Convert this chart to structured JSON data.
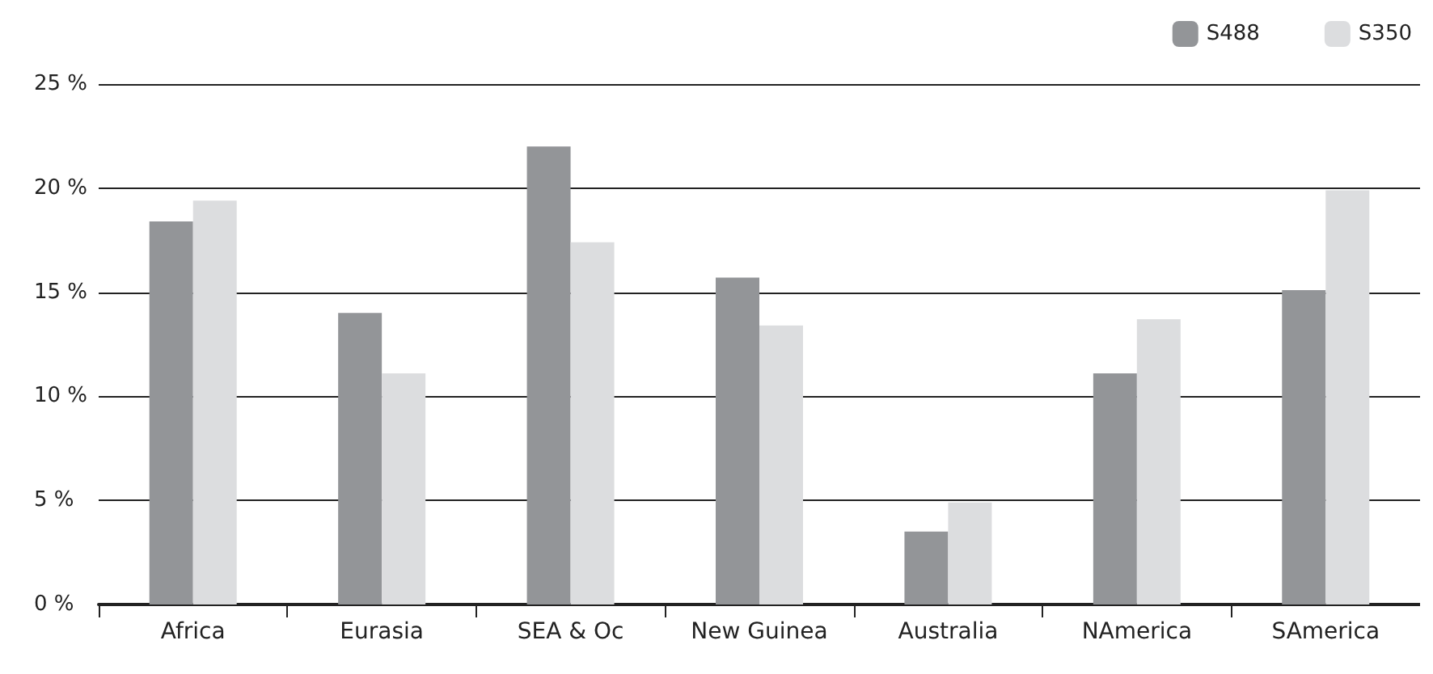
{
  "chart_data": {
    "type": "bar",
    "categories": [
      "Africa",
      "Eurasia",
      "SEA & Oc",
      "New Guinea",
      "Australia",
      "NAmerica",
      "SAmerica"
    ],
    "series": [
      {
        "name": "S488",
        "color": "#939598",
        "values": [
          18.4,
          14.0,
          22.0,
          15.7,
          3.5,
          11.1,
          15.1
        ]
      },
      {
        "name": "S350",
        "color": "#dcdddf",
        "values": [
          19.4,
          11.1,
          17.4,
          13.4,
          4.9,
          13.7,
          19.9
        ]
      }
    ],
    "ylim": [
      0,
      25
    ],
    "yticks": [
      {
        "value": 0,
        "label": "0 %"
      },
      {
        "value": 5,
        "label": "5 %"
      },
      {
        "value": 10,
        "label": "10 %"
      },
      {
        "value": 15,
        "label": "15 %"
      },
      {
        "value": 20,
        "label": "20 %"
      },
      {
        "value": 25,
        "label": "25 %"
      }
    ],
    "grid": "y",
    "legend": "top right"
  }
}
